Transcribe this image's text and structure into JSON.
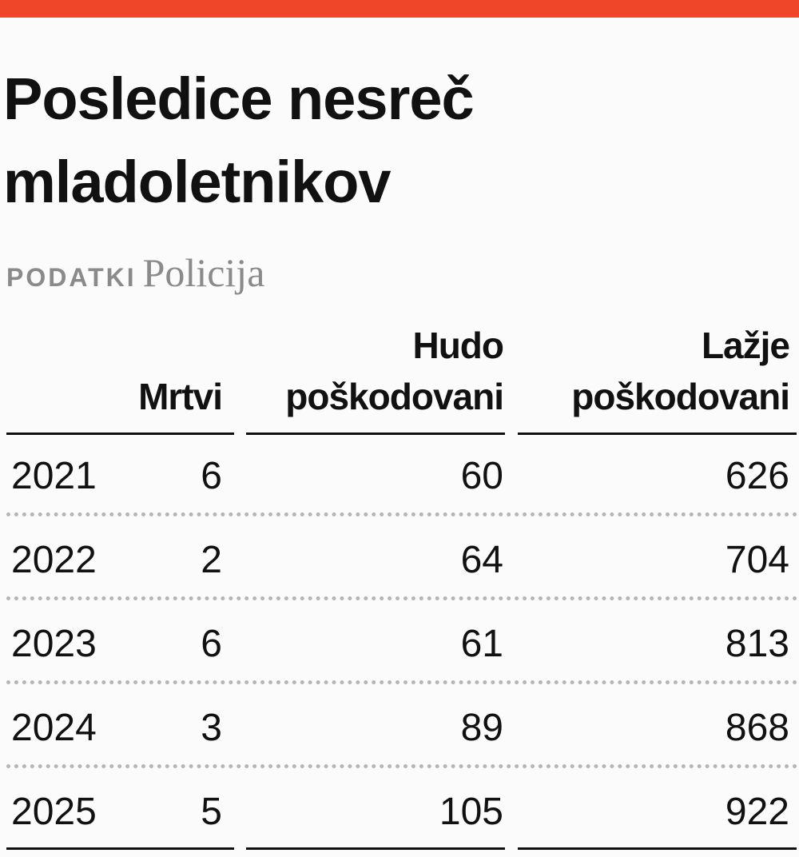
{
  "title": [
    "Posledice nesreč",
    "mladoletnikov"
  ],
  "source": {
    "label": "PODATKI",
    "name": "Policija"
  },
  "table": {
    "headers": [
      [
        "Mrtvi"
      ],
      [
        "Hudo",
        "poškodovani"
      ],
      [
        "Lažje",
        "poškodovani"
      ]
    ],
    "rows": [
      [
        2021,
        6,
        60,
        626
      ],
      [
        2022,
        2,
        64,
        704
      ],
      [
        2023,
        6,
        61,
        813
      ],
      [
        2024,
        3,
        89,
        868
      ],
      [
        2025,
        5,
        105,
        922
      ]
    ]
  }
}
